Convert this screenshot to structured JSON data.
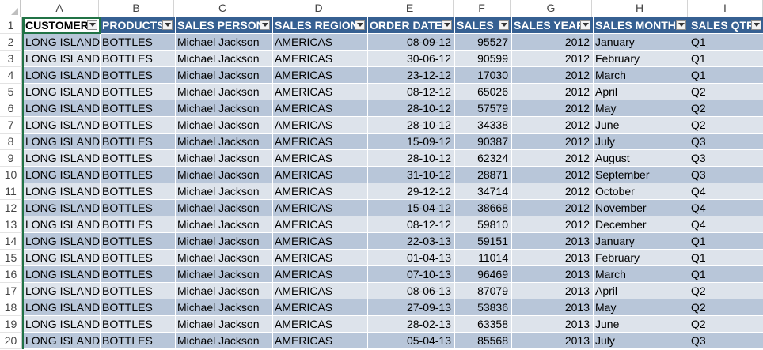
{
  "column_letters": [
    "A",
    "B",
    "C",
    "D",
    "E",
    "F",
    "G",
    "H",
    "I"
  ],
  "row_numbers": [
    "1",
    "2",
    "3",
    "4",
    "5",
    "6",
    "7",
    "8",
    "9",
    "10",
    "11",
    "12",
    "13",
    "14",
    "15",
    "16",
    "17",
    "18",
    "19",
    "20"
  ],
  "table": {
    "headers": [
      "CUSTOMER",
      "PRODUCTS",
      "SALES PERSON",
      "SALES REGION",
      "ORDER DATE",
      "SALES",
      "SALES YEAR",
      "SALES MONTH",
      "SALES QTR"
    ],
    "rows": [
      [
        "LONG ISLANDS",
        "BOTTLES",
        "Michael Jackson",
        "AMERICAS",
        "08-09-12",
        "95527",
        "2012",
        "January",
        "Q1"
      ],
      [
        "LONG ISLANDS",
        "BOTTLES",
        "Michael Jackson",
        "AMERICAS",
        "30-06-12",
        "90599",
        "2012",
        "February",
        "Q1"
      ],
      [
        "LONG ISLANDS",
        "BOTTLES",
        "Michael Jackson",
        "AMERICAS",
        "23-12-12",
        "17030",
        "2012",
        "March",
        "Q1"
      ],
      [
        "LONG ISLANDS",
        "BOTTLES",
        "Michael Jackson",
        "AMERICAS",
        "08-12-12",
        "65026",
        "2012",
        "April",
        "Q2"
      ],
      [
        "LONG ISLANDS",
        "BOTTLES",
        "Michael Jackson",
        "AMERICAS",
        "28-10-12",
        "57579",
        "2012",
        "May",
        "Q2"
      ],
      [
        "LONG ISLANDS",
        "BOTTLES",
        "Michael Jackson",
        "AMERICAS",
        "28-10-12",
        "34338",
        "2012",
        "June",
        "Q2"
      ],
      [
        "LONG ISLANDS",
        "BOTTLES",
        "Michael Jackson",
        "AMERICAS",
        "15-09-12",
        "90387",
        "2012",
        "July",
        "Q3"
      ],
      [
        "LONG ISLANDS",
        "BOTTLES",
        "Michael Jackson",
        "AMERICAS",
        "28-10-12",
        "62324",
        "2012",
        "August",
        "Q3"
      ],
      [
        "LONG ISLANDS",
        "BOTTLES",
        "Michael Jackson",
        "AMERICAS",
        "31-10-12",
        "28871",
        "2012",
        "September",
        "Q3"
      ],
      [
        "LONG ISLANDS",
        "BOTTLES",
        "Michael Jackson",
        "AMERICAS",
        "29-12-12",
        "34714",
        "2012",
        "October",
        "Q4"
      ],
      [
        "LONG ISLANDS",
        "BOTTLES",
        "Michael Jackson",
        "AMERICAS",
        "15-04-12",
        "38668",
        "2012",
        "November",
        "Q4"
      ],
      [
        "LONG ISLANDS",
        "BOTTLES",
        "Michael Jackson",
        "AMERICAS",
        "08-12-12",
        "59810",
        "2012",
        "December",
        "Q4"
      ],
      [
        "LONG ISLANDS",
        "BOTTLES",
        "Michael Jackson",
        "AMERICAS",
        "22-03-13",
        "59151",
        "2013",
        "January",
        "Q1"
      ],
      [
        "LONG ISLANDS",
        "BOTTLES",
        "Michael Jackson",
        "AMERICAS",
        "01-04-13",
        "11014",
        "2013",
        "February",
        "Q1"
      ],
      [
        "LONG ISLANDS",
        "BOTTLES",
        "Michael Jackson",
        "AMERICAS",
        "07-10-13",
        "96469",
        "2013",
        "March",
        "Q1"
      ],
      [
        "LONG ISLANDS",
        "BOTTLES",
        "Michael Jackson",
        "AMERICAS",
        "08-06-13",
        "87079",
        "2013",
        "April",
        "Q2"
      ],
      [
        "LONG ISLANDS",
        "BOTTLES",
        "Michael Jackson",
        "AMERICAS",
        "27-09-13",
        "53836",
        "2013",
        "May",
        "Q2"
      ],
      [
        "LONG ISLANDS",
        "BOTTLES",
        "Michael Jackson",
        "AMERICAS",
        "28-02-13",
        "63358",
        "2013",
        "June",
        "Q2"
      ],
      [
        "LONG ISLANDS",
        "BOTTLES",
        "Michael Jackson",
        "AMERICAS",
        "05-04-13",
        "85568",
        "2013",
        "July",
        "Q3"
      ]
    ]
  },
  "colors": {
    "header_fill": "#366092",
    "band_dark": "#b8c6d9",
    "band_light": "#dde3eb",
    "selection": "#217346"
  },
  "icons": {
    "filter": "filter-dropdown-icon",
    "select_all": "select-all-triangle-icon"
  }
}
